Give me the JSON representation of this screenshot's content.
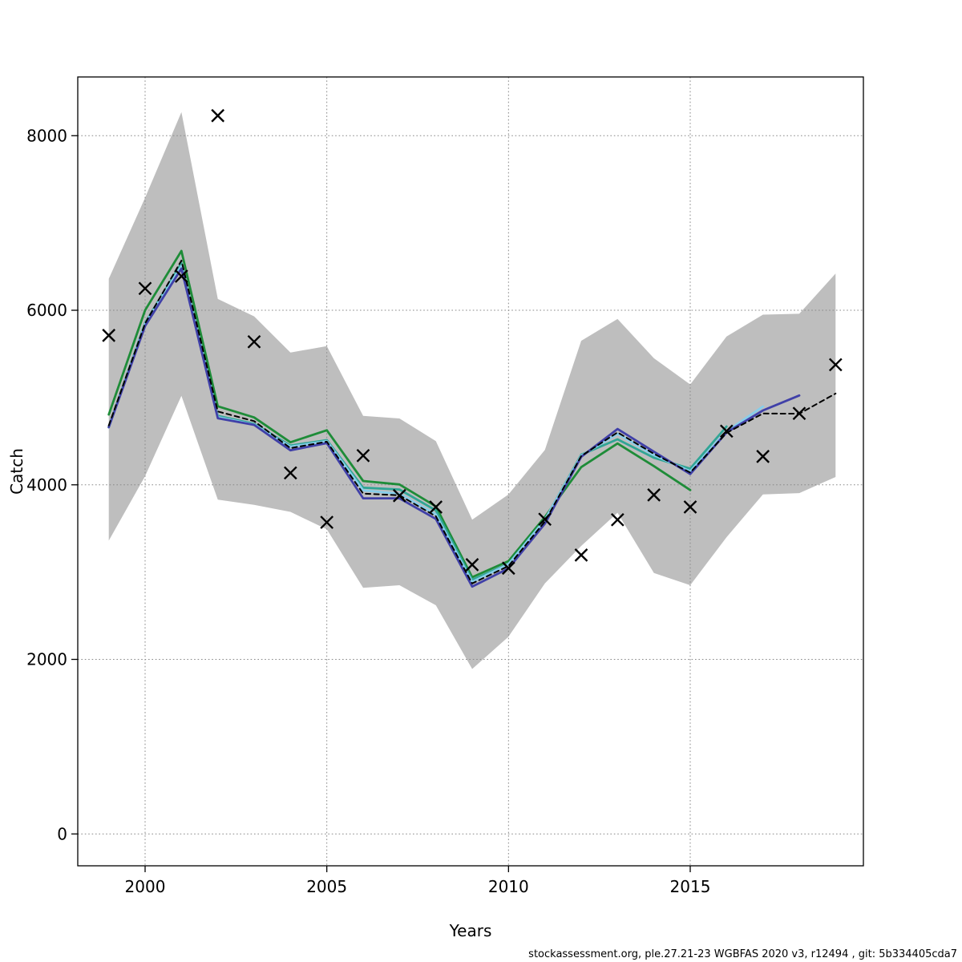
{
  "page": {
    "background": "#ffffff"
  },
  "footer": {
    "text": "stockassessment.org, ple.27.21-23 WGBFAS 2020 v3, r12494 , git: 5b334405cda7"
  },
  "chart_data": {
    "type": "line",
    "title": "",
    "xlabel": "Years",
    "ylabel": "Catch",
    "xlim": [
      1998.147,
      2019.765
    ],
    "ylim": [
      -365,
      8673
    ],
    "x_ticks": [
      2000,
      2005,
      2010,
      2015
    ],
    "y_ticks": [
      0,
      2000,
      4000,
      6000,
      8000
    ],
    "grid": "dotted",
    "legend": "none",
    "grid_color": "#888888",
    "axis_color": "#000000",
    "years": [
      1999,
      2000,
      2001,
      2002,
      2003,
      2004,
      2005,
      2006,
      2007,
      2008,
      2009,
      2010,
      2011,
      2012,
      2013,
      2014,
      2015,
      2016,
      2017,
      2018,
      2019
    ],
    "band": {
      "color": "#bebebe",
      "upper": [
        6360,
        7290,
        8270,
        6130,
        5930,
        5515,
        5590,
        4790,
        4760,
        4500,
        3600,
        3890,
        4400,
        5650,
        5900,
        5450,
        5150,
        5700,
        5950,
        5960,
        6420
      ],
      "lower": [
        3360,
        4100,
        5020,
        3830,
        3770,
        3690,
        3490,
        2820,
        2850,
        2620,
        1890,
        2260,
        2870,
        3300,
        3680,
        2990,
        2850,
        3400,
        3890,
        3905,
        4090
      ]
    },
    "series": [
      {
        "name": "green-run-to-2015",
        "color": "#1e8c38",
        "width": 2.8,
        "dash": false,
        "values": [
          4805,
          6000,
          6680,
          4900,
          4772,
          4487,
          4625,
          4044,
          4004,
          3753,
          2942,
          3126,
          3631,
          4203,
          4474,
          4215,
          3940
        ]
      },
      {
        "name": "teal-run-to-2016",
        "color": "#30a595",
        "width": 2.8,
        "dash": false,
        "values": [
          4665,
          5855,
          6540,
          4790,
          4700,
          4450,
          4512,
          3968,
          3946,
          3707,
          2911,
          3095,
          3600,
          4345,
          4521,
          4310,
          4185,
          4668
        ]
      },
      {
        "name": "lightblue-run-to-2017",
        "color": "#87ceeb",
        "width": 2.8,
        "dash": false,
        "values": [
          4657,
          5845,
          6508,
          4775,
          4690,
          4436,
          4500,
          3937,
          3897,
          3661,
          2887,
          3090,
          3600,
          4335,
          4585,
          4340,
          4155,
          4613,
          4897
        ]
      },
      {
        "name": "purple-run-to-2018",
        "color": "#4040a8",
        "width": 2.8,
        "dash": false,
        "values": [
          4660,
          5820,
          6478,
          4763,
          4687,
          4396,
          4478,
          3845,
          3845,
          3609,
          2834,
          3043,
          3554,
          4320,
          4640,
          4380,
          4124,
          4600,
          4852,
          5024
        ]
      },
      {
        "name": "base-run-dashed",
        "color": "#000000",
        "width": 2,
        "dash": true,
        "values": [
          4680,
          5850,
          6570,
          4840,
          4730,
          4420,
          4495,
          3900,
          3880,
          3640,
          2870,
          3070,
          3580,
          4330,
          4600,
          4355,
          4140,
          4595,
          4817,
          4814,
          5046
        ]
      }
    ],
    "observed": {
      "name": "observed-catch",
      "marker": "x",
      "color": "#000000",
      "values": [
        5712,
        6250,
        6390,
        8230,
        5639,
        4136,
        3570,
        4335,
        3876,
        3745,
        3085,
        3045,
        3606,
        3195,
        3600,
        3884,
        3746,
        4615,
        4325,
        4818,
        5376
      ]
    }
  }
}
